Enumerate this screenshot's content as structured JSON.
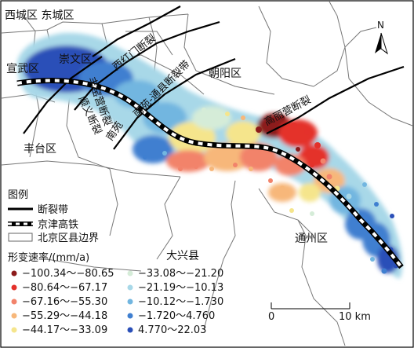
{
  "districts": {
    "xicheng_dongcheng": "西城区 东城区",
    "xuanwu": "宣武区",
    "chongwen": "崇文区",
    "chaoyang": "朝阳区",
    "fengtai": "丰台区",
    "daxing": "大兴县",
    "tongzhou": "通州区"
  },
  "faults": {
    "xihongmen": "西红门断裂",
    "nanyuan_tongxian": "南苑-通县断裂带",
    "nanyuan_short": "南苑",
    "fengbo": "丰窑营断裂",
    "shunyi": "顺义断裂",
    "gaoliying": "高丽营断裂"
  },
  "north_arrow": {
    "label": "N"
  },
  "legend": {
    "title": "图例",
    "fault_label": "断裂带",
    "railway_label": "京津高铁",
    "boundary_label": "北京区县边界",
    "rate_title": "形变速率/(mm/a)",
    "classes": [
      {
        "range": "−100.34～−80.65",
        "color": "#8c1b1b"
      },
      {
        "range": "−80.64～−67.17",
        "color": "#e4312b"
      },
      {
        "range": "−67.16～−55.30",
        "color": "#f2836b"
      },
      {
        "range": "−55.29～−44.18",
        "color": "#f7b77a"
      },
      {
        "range": "−44.17～−33.09",
        "color": "#f5e58c"
      },
      {
        "range": "−33.08～−21.20",
        "color": "#d5ecd8"
      },
      {
        "range": "−21.19～−10.13",
        "color": "#a8d8e8"
      },
      {
        "range": "−10.12～−1.730",
        "color": "#72b6e0"
      },
      {
        "range": "−1.720～4.760",
        "color": "#3f7fd0"
      },
      {
        "range": "4.770～22.03",
        "color": "#2a4fb8"
      }
    ]
  },
  "scale_bar": {
    "start_label": "0",
    "end_label": "10 km"
  },
  "colors": {
    "railway": "#000000",
    "fault": "#000000",
    "boundary": "#666666"
  }
}
